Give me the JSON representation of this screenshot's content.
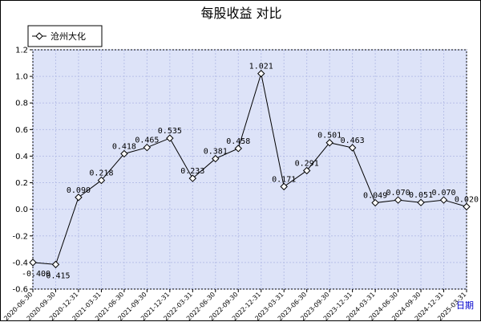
{
  "chart_data": {
    "type": "line",
    "title": "每股收益  对比",
    "xlabel": "日期",
    "ylabel": "",
    "ylim": [
      -0.6,
      1.2
    ],
    "yticks": [
      "-0.6",
      "-0.4",
      "-0.2",
      "0.0",
      "0.2",
      "0.4",
      "0.6",
      "0.8",
      "1.0",
      "1.2"
    ],
    "grid": true,
    "legend_position": "top-left",
    "colors": {
      "plot_background": "#dde3f8",
      "grid": "#b8c0e8",
      "line": "#000000",
      "marker_fill": "#ffffff"
    },
    "categories": [
      "2020-06-30",
      "2020-09-30",
      "2020-12-31",
      "2021-03-31",
      "2021-06-30",
      "2021-09-30",
      "2021-12-31",
      "2022-03-31",
      "2022-06-30",
      "2022-09-30",
      "2022-12-31",
      "2023-03-31",
      "2023-06-30",
      "2023-09-30",
      "2023-12-31",
      "2024-03-31",
      "2024-06-30",
      "2024-09-30",
      "2024-12-31",
      "2025-03-31"
    ],
    "series": [
      {
        "name": "沧州大化",
        "values": [
          -0.4,
          -0.415,
          0.09,
          0.218,
          0.418,
          0.465,
          0.535,
          0.233,
          0.381,
          0.458,
          1.021,
          0.171,
          0.291,
          0.501,
          0.463,
          0.049,
          0.07,
          0.051,
          0.07,
          0.02
        ],
        "labels": [
          "-0.400",
          "-0.415",
          "0.090",
          "0.218",
          "0.418",
          "0.465",
          "0.535",
          "0.233",
          "0.381",
          "0.458",
          "1.021",
          "0.171",
          "0.291",
          "0.501",
          "0.463",
          "0.049",
          "0.070",
          "0.051",
          "0.070",
          "0.020"
        ]
      }
    ]
  }
}
